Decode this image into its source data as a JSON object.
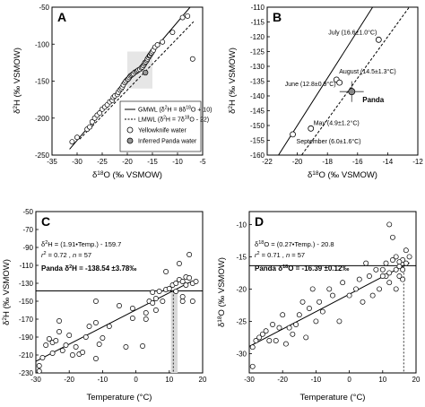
{
  "chart_data": [
    {
      "panel": "A",
      "type": "scatter",
      "xlim": [
        -35,
        -5
      ],
      "ylim": [
        -250,
        -50
      ],
      "xticks": [
        -35,
        -30,
        -25,
        -20,
        -15,
        -10,
        -5
      ],
      "yticks": [
        -250,
        -200,
        -150,
        -100,
        -50
      ],
      "xlabel": "δ18O (‰ VSMOW)",
      "ylabel": "δ2H (‰ VSMOW)",
      "grid": false,
      "highlight_box": {
        "x": [
          -20,
          -15
        ],
        "y": [
          -160,
          -110
        ]
      },
      "lines": [
        {
          "name": "GMWL (δ2H = 8δ18O + 10)",
          "slope": 8,
          "intercept": 10,
          "style": "solid",
          "x": [
            -31.5,
            -7.5
          ]
        },
        {
          "name": "LMWL (δ2H = 7δ18O - 22)",
          "slope": 7,
          "intercept": -22,
          "style": "dashed",
          "x": [
            -29.5,
            -6.8
          ]
        }
      ],
      "series": [
        {
          "name": "Yellowknife water",
          "marker": "open-circle",
          "points": [
            [
              -31,
              -232
            ],
            [
              -30,
              -226
            ],
            [
              -28,
              -215
            ],
            [
              -27.5,
              -212
            ],
            [
              -27,
              -205
            ],
            [
              -26.5,
              -200
            ],
            [
              -26,
              -196
            ],
            [
              -25.5,
              -193
            ],
            [
              -25,
              -188
            ],
            [
              -24.5,
              -185
            ],
            [
              -24,
              -182
            ],
            [
              -23.5,
              -178
            ],
            [
              -23,
              -176
            ],
            [
              -22.8,
              -172
            ],
            [
              -22.5,
              -170
            ],
            [
              -22,
              -168
            ],
            [
              -21.8,
              -165
            ],
            [
              -21.5,
              -162
            ],
            [
              -21.2,
              -160
            ],
            [
              -21,
              -158
            ],
            [
              -20.8,
              -155
            ],
            [
              -20.5,
              -152
            ],
            [
              -20.3,
              -150
            ],
            [
              -20,
              -148
            ],
            [
              -19.8,
              -147
            ],
            [
              -19.6,
              -145
            ],
            [
              -19.4,
              -143
            ],
            [
              -19.2,
              -142
            ],
            [
              -19,
              -141
            ],
            [
              -18.8,
              -140
            ],
            [
              -18.5,
              -138
            ],
            [
              -18.2,
              -137
            ],
            [
              -18,
              -136
            ],
            [
              -17.8,
              -135
            ],
            [
              -17.5,
              -134
            ],
            [
              -17.2,
              -132
            ],
            [
              -17,
              -131
            ],
            [
              -16.8,
              -129
            ],
            [
              -16.6,
              -127
            ],
            [
              -16.5,
              -125
            ],
            [
              -16.3,
              -124
            ],
            [
              -16.1,
              -122
            ],
            [
              -16,
              -120
            ],
            [
              -15.8,
              -118
            ],
            [
              -15.6,
              -116
            ],
            [
              -15.5,
              -115
            ],
            [
              -15.3,
              -113
            ],
            [
              -15.2,
              -112
            ],
            [
              -15,
              -110
            ],
            [
              -14.8,
              -108
            ],
            [
              -14.5,
              -104
            ],
            [
              -14,
              -101
            ],
            [
              -13,
              -97
            ],
            [
              -11,
              -84
            ],
            [
              -9,
              -64
            ],
            [
              -8,
              -62
            ],
            [
              -7,
              -120
            ]
          ]
        },
        {
          "name": "Inferred Panda water",
          "marker": "gray-circle",
          "points": [
            [
              -16.4,
              -138.5
            ]
          ]
        }
      ],
      "legend_position": "bottom-right"
    },
    {
      "panel": "B",
      "type": "scatter",
      "xlim": [
        -22,
        -12
      ],
      "ylim": [
        -160,
        -110
      ],
      "xticks": [
        -22,
        -20,
        -18,
        -16,
        -14,
        -12
      ],
      "yticks": [
        -160,
        -155,
        -150,
        -145,
        -140,
        -135,
        -130,
        -125,
        -120,
        -115,
        -110
      ],
      "xlabel": "δ18O (‰ VSMOW)",
      "ylabel": "δ2H (‰ VSMOW)",
      "grid": false,
      "lines": [
        {
          "name": "GMWL",
          "slope": 8,
          "intercept": 10,
          "style": "solid",
          "x": [
            -21.25,
            -15
          ]
        },
        {
          "name": "LMWL",
          "slope": 7,
          "intercept": -22,
          "style": "dashed",
          "x": [
            -19.7,
            -12.6
          ]
        }
      ],
      "points": [
        {
          "label": "July (16.6±1.0°C)",
          "x": -14.6,
          "y": -121
        },
        {
          "label": "August (14.5±1.3°C)",
          "x": -17.4,
          "y": -134.5
        },
        {
          "label": "June (12.8±0.9°C)",
          "x": -17.2,
          "y": -135.5
        },
        {
          "label": "May (4.9±1.2°C)",
          "x": -19.1,
          "y": -151
        },
        {
          "label": "September (6.0±1.6°C)",
          "x": -20.3,
          "y": -153
        }
      ],
      "panda_point": {
        "label": "Panda",
        "x": -16.39,
        "y": -138.54,
        "x_err": 0.8,
        "y_err": 3.5
      }
    },
    {
      "panel": "C",
      "type": "scatter",
      "xlim": [
        -30,
        20
      ],
      "ylim": [
        -230,
        -50
      ],
      "xticks": [
        -30,
        -20,
        -10,
        0,
        10,
        20
      ],
      "yticks": [
        -230,
        -210,
        -190,
        -170,
        -150,
        -130,
        -110,
        -90,
        -70,
        -50
      ],
      "xlabel": "Temperature (°C)",
      "ylabel": "δ2H (‰ VSMOW)",
      "grid": false,
      "annotations": [
        "δ2H = (1.91•Temp.) - 159.7",
        "r2 = 0.72 , n = 57",
        "Panda δ2H = -138.54 ±3.78‰"
      ],
      "regression": {
        "slope": 1.91,
        "intercept": -159.7,
        "x": [
          -30,
          17
        ]
      },
      "panda_line_y": -138.54,
      "panda_temp": 11.2,
      "panda_temp_band": [
        10.5,
        12.5
      ],
      "points": [
        [
          -29,
          -228
        ],
        [
          -29,
          -222
        ],
        [
          -28,
          -213
        ],
        [
          -27,
          -199
        ],
        [
          -26,
          -192
        ],
        [
          -25,
          -208
        ],
        [
          -25,
          -196
        ],
        [
          -24,
          -194
        ],
        [
          -23,
          -184
        ],
        [
          -23,
          -172
        ],
        [
          -22,
          -205
        ],
        [
          -21,
          -199
        ],
        [
          -20,
          -188
        ],
        [
          -19,
          -210
        ],
        [
          -18,
          -201
        ],
        [
          -17,
          -209
        ],
        [
          -16,
          -207
        ],
        [
          -15,
          -190
        ],
        [
          -14,
          -178
        ],
        [
          -12,
          -214
        ],
        [
          -12,
          -174
        ],
        [
          -12,
          -150
        ],
        [
          -11,
          -198
        ],
        [
          -10,
          -191
        ],
        [
          -8,
          -178
        ],
        [
          -5,
          -155
        ],
        [
          -3,
          -201
        ],
        [
          -1,
          -169
        ],
        [
          -1,
          -158
        ],
        [
          2,
          -200
        ],
        [
          3,
          -170
        ],
        [
          3,
          -163
        ],
        [
          4,
          -150
        ],
        [
          5,
          -152
        ],
        [
          5,
          -140
        ],
        [
          6,
          -160
        ],
        [
          6,
          -147
        ],
        [
          7,
          -139
        ],
        [
          8,
          -150
        ],
        [
          9,
          -137
        ],
        [
          9,
          -117
        ],
        [
          10,
          -136
        ],
        [
          11,
          -132
        ],
        [
          12,
          -130
        ],
        [
          12,
          -139
        ],
        [
          13,
          -126
        ],
        [
          13,
          -108
        ],
        [
          14,
          -145
        ],
        [
          14,
          -128
        ],
        [
          14,
          -150
        ],
        [
          15,
          -123
        ],
        [
          15,
          -132
        ],
        [
          16,
          -98
        ],
        [
          16,
          -124
        ],
        [
          17,
          -150
        ],
        [
          17,
          -130
        ],
        [
          18,
          -128
        ]
      ]
    },
    {
      "panel": "D",
      "type": "scatter",
      "xlim": [
        -30,
        20
      ],
      "ylim": [
        -33,
        -8
      ],
      "xticks": [
        -30,
        -20,
        -10,
        0,
        10,
        20
      ],
      "yticks": [
        -30,
        -25,
        -20,
        -15,
        -10
      ],
      "xlabel": "Temperature (°C)",
      "ylabel": "δ18O (‰ VSMOW)",
      "grid": false,
      "annotations": [
        "δ18O = (0.27•Temp.) - 20.8",
        "r2 = 0.71 , n = 57",
        "Panda δ18O = -16.39 ±0.12‰"
      ],
      "regression": {
        "slope": 0.27,
        "intercept": -20.8,
        "x": [
          -30,
          18
        ]
      },
      "panda_line_y": -16.39,
      "panda_temp": 16.3,
      "points": [
        [
          -29,
          -32
        ],
        [
          -29,
          -29
        ],
        [
          -28,
          -28
        ],
        [
          -27,
          -27.5
        ],
        [
          -26,
          -27
        ],
        [
          -25,
          -26.5
        ],
        [
          -24,
          -28
        ],
        [
          -23,
          -25.5
        ],
        [
          -22,
          -28
        ],
        [
          -21,
          -26
        ],
        [
          -20,
          -24
        ],
        [
          -19,
          -28.5
        ],
        [
          -18,
          -26
        ],
        [
          -17,
          -27
        ],
        [
          -16,
          -25.5
        ],
        [
          -15,
          -24
        ],
        [
          -14,
          -22
        ],
        [
          -13,
          -27.5
        ],
        [
          -12,
          -23
        ],
        [
          -11,
          -20
        ],
        [
          -10,
          -25
        ],
        [
          -9,
          -22
        ],
        [
          -8,
          -23.5
        ],
        [
          -6,
          -20
        ],
        [
          -5,
          -21
        ],
        [
          -3,
          -25
        ],
        [
          -2,
          -19
        ],
        [
          0,
          -21
        ],
        [
          2,
          -20
        ],
        [
          3,
          -18.5
        ],
        [
          4,
          -22
        ],
        [
          5,
          -16
        ],
        [
          6,
          -18
        ],
        [
          7,
          -21
        ],
        [
          8,
          -17
        ],
        [
          9,
          -20
        ],
        [
          10,
          -17
        ],
        [
          11,
          -16
        ],
        [
          11,
          -18
        ],
        [
          12,
          -17.5
        ],
        [
          12,
          -19
        ],
        [
          13,
          -12
        ],
        [
          13,
          -15.5
        ],
        [
          14,
          -17
        ],
        [
          14,
          -15
        ],
        [
          15,
          -16.5
        ],
        [
          15,
          -18
        ],
        [
          16,
          -15.5
        ],
        [
          16,
          -17
        ],
        [
          17,
          -14
        ],
        [
          17,
          -16
        ],
        [
          18,
          -15
        ],
        [
          14,
          -20
        ],
        [
          12,
          -10
        ],
        [
          16,
          -18.5
        ],
        [
          10,
          -18
        ],
        [
          15,
          -15.8
        ]
      ]
    }
  ]
}
